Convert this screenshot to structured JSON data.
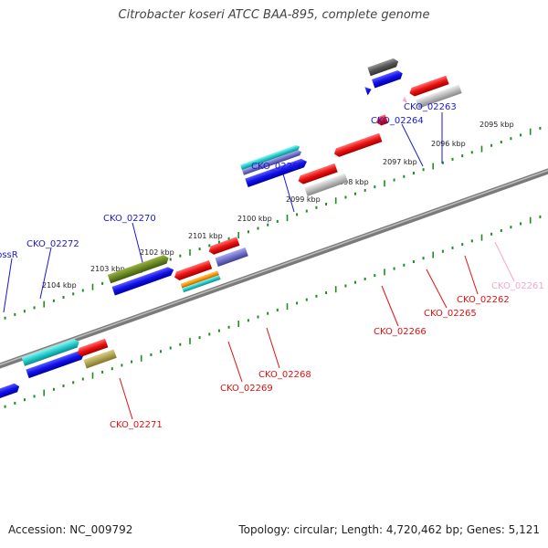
{
  "title": "Citrobacter koseri ATCC BAA-895, complete genome",
  "accession": "Accession: NC_009792",
  "footer_info": "Topology: circular; Length: 4,720,462 bp; Genes: 5,121",
  "colors": {
    "backbone": "#808080",
    "tick": "#228b22",
    "forward_label": "#1a1acc",
    "reverse_label": "#e01010",
    "faded_label": "#f4a8c8"
  },
  "kbp_labels": [
    "2095 kbp",
    "2096 kbp",
    "2097 kbp",
    "2098 kbp",
    "2099 kbp",
    "2100 kbp",
    "2101 kbp",
    "2102 kbp",
    "2103 kbp",
    "2104 kbp"
  ],
  "forward_genes": [
    {
      "label": "CKO_02263",
      "color": "#1a1acc"
    },
    {
      "label": "CKO_02264",
      "color": "#1a1acc"
    },
    {
      "label": "CKO_02267",
      "color": "#1a1acc"
    },
    {
      "label": "CKO_02270",
      "color": "#1a1acc"
    },
    {
      "label": "CKO_02272",
      "color": "#1a1acc"
    },
    {
      "label": "bssR",
      "color": "#1a1acc"
    }
  ],
  "reverse_genes": [
    {
      "label": "CKO_02261",
      "color": "#f4a8c8"
    },
    {
      "label": "CKO_02262",
      "color": "#e01010"
    },
    {
      "label": "CKO_02265",
      "color": "#e01010"
    },
    {
      "label": "CKO_02266",
      "color": "#e01010"
    },
    {
      "label": "CKO_02268",
      "color": "#e01010"
    },
    {
      "label": "CKO_02269",
      "color": "#e01010"
    },
    {
      "label": "CKO_02271",
      "color": "#e01010"
    }
  ]
}
